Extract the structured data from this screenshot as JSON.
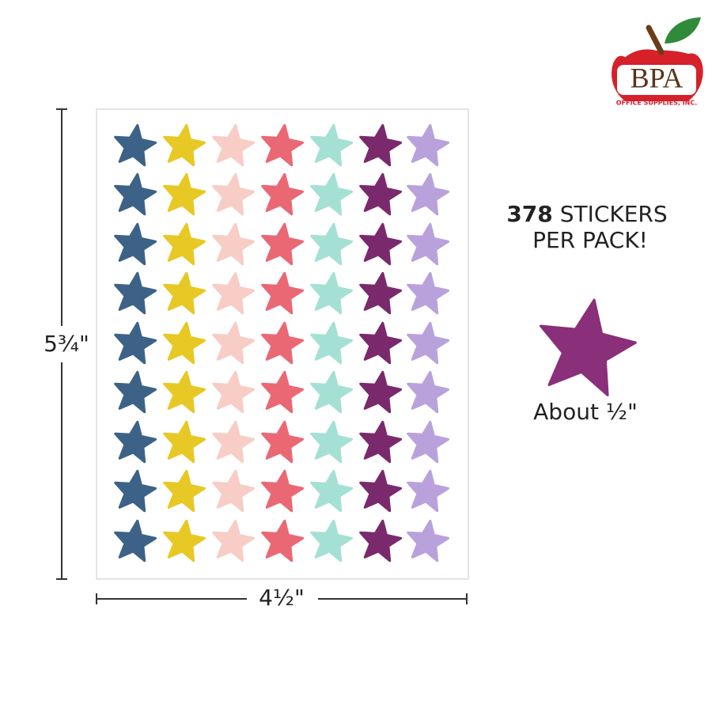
{
  "logo": {
    "name": "BPA",
    "tagline": "OFFICE SUPPLIES, INC."
  },
  "callout": {
    "count": "378",
    "line1": "STICKERS",
    "line2": "PER PACK!"
  },
  "sticker_size": "About ½\"",
  "dimensions": {
    "height": "5¾\"",
    "width": "4½\""
  }
}
